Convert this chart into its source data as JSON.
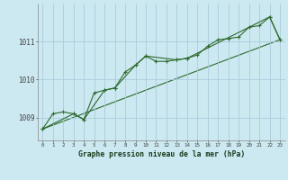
{
  "title": "Graphe pression niveau de la mer (hPa)",
  "bg_color": "#cce8f0",
  "grid_color": "#aaccdd",
  "line_color": "#2d6a2d",
  "xlim": [
    -0.5,
    23.5
  ],
  "ylim": [
    1008.4,
    1012.0
  ],
  "yticks": [
    1009,
    1010,
    1011
  ],
  "xticks": [
    0,
    1,
    2,
    3,
    4,
    5,
    6,
    7,
    8,
    9,
    10,
    11,
    12,
    13,
    14,
    15,
    16,
    17,
    18,
    19,
    20,
    21,
    22,
    23
  ],
  "series1": [
    [
      0,
      1008.7
    ],
    [
      1,
      1009.1
    ],
    [
      2,
      1009.15
    ],
    [
      3,
      1009.1
    ],
    [
      4,
      1008.95
    ],
    [
      5,
      1009.65
    ],
    [
      6,
      1009.72
    ],
    [
      7,
      1009.78
    ],
    [
      8,
      1010.2
    ],
    [
      9,
      1010.38
    ],
    [
      10,
      1010.62
    ],
    [
      11,
      1010.48
    ],
    [
      12,
      1010.48
    ],
    [
      13,
      1010.52
    ],
    [
      14,
      1010.56
    ],
    [
      15,
      1010.65
    ],
    [
      16,
      1010.88
    ],
    [
      17,
      1011.05
    ],
    [
      18,
      1011.08
    ],
    [
      19,
      1011.12
    ],
    [
      20,
      1011.38
    ],
    [
      21,
      1011.42
    ],
    [
      22,
      1011.65
    ],
    [
      23,
      1011.05
    ]
  ],
  "series2": [
    [
      0,
      1008.7
    ],
    [
      3,
      1009.1
    ],
    [
      4,
      1008.95
    ],
    [
      6,
      1009.72
    ],
    [
      7,
      1009.78
    ],
    [
      9,
      1010.38
    ],
    [
      10,
      1010.62
    ],
    [
      13,
      1010.52
    ],
    [
      14,
      1010.56
    ],
    [
      22,
      1011.65
    ],
    [
      23,
      1011.05
    ]
  ],
  "series3": [
    [
      0,
      1008.7
    ],
    [
      23,
      1011.05
    ]
  ]
}
